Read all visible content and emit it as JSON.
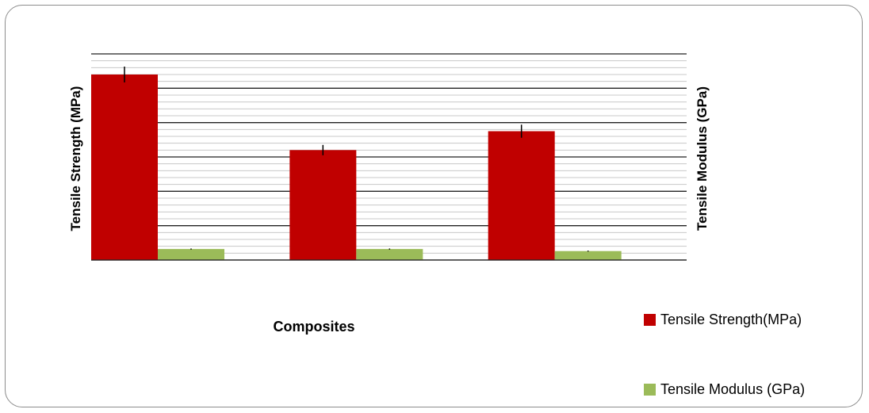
{
  "chart_data": {
    "type": "bar",
    "categories": [
      "",
      "",
      ""
    ],
    "series": [
      {
        "name": "Tensile Strength(MPa)",
        "color": "#c00000",
        "values": [
          54,
          32,
          37.5
        ],
        "errors": [
          2.3,
          1.5,
          1.9
        ]
      },
      {
        "name": "Tensile Modulus (GPa)",
        "color": "#9bbb59",
        "values": [
          3.2,
          3.2,
          2.6
        ],
        "errors": [
          0.15,
          0.15,
          0.15
        ]
      }
    ],
    "xlabel": "Composites",
    "ylabel": "Tensile Strength (MPa)",
    "y2label": "Tensile Modulus (GPa)",
    "ylim": [
      0,
      60
    ],
    "major_grid_step": 10,
    "minor_grid_step": 2,
    "grid": true,
    "legend": "right"
  }
}
